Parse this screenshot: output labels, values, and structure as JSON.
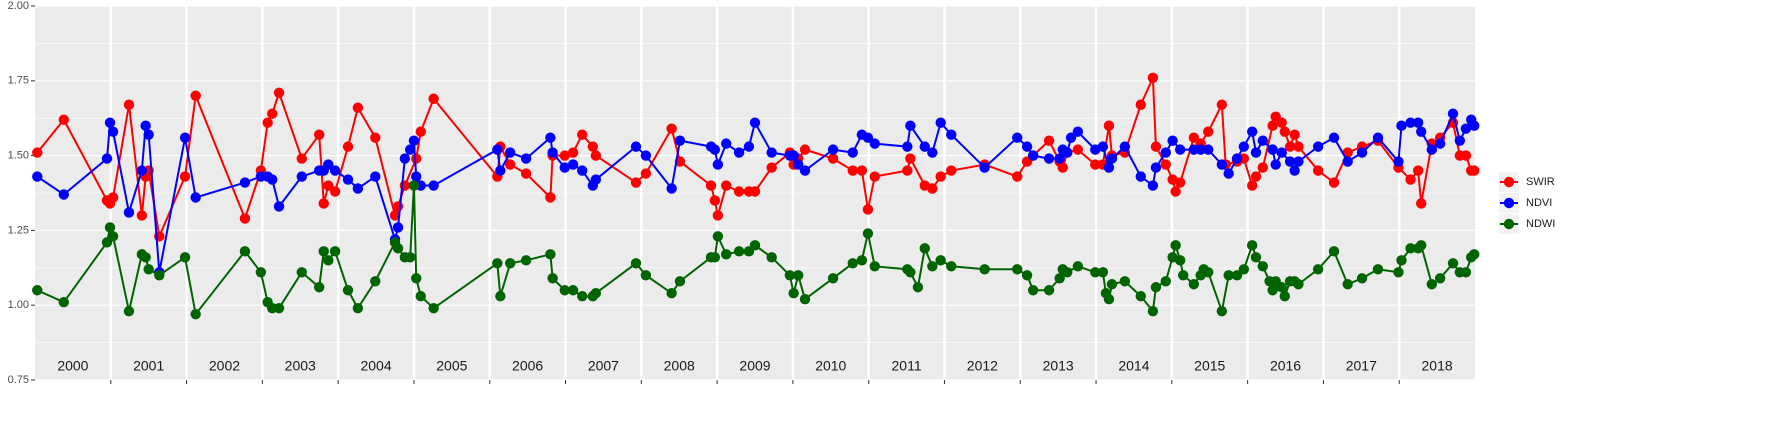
{
  "chart_data": {
    "type": "line",
    "xlim": [
      2000,
      2019
    ],
    "xticks": [
      2001,
      2002,
      2003,
      2004,
      2005,
      2006,
      2007,
      2008,
      2009,
      2010,
      2011,
      2012,
      2013,
      2014,
      2015,
      2016,
      2017,
      2018
    ],
    "year_labels": [
      "2000",
      "2001",
      "2002",
      "2003",
      "2004",
      "2005",
      "2006",
      "2007",
      "2008",
      "2009",
      "2010",
      "2011",
      "2012",
      "2013",
      "2014",
      "2015",
      "2016",
      "2017",
      "2018"
    ],
    "ylim": [
      0.75,
      2.0
    ],
    "yticks": [
      {
        "value": 0.75,
        "label": "0.75"
      },
      {
        "value": 1.0,
        "label": "1.00"
      },
      {
        "value": 1.25,
        "label": "1.25"
      },
      {
        "value": 1.5,
        "label": "1.50"
      },
      {
        "value": 1.75,
        "label": "1.75"
      },
      {
        "value": 2.0,
        "label": "2.00"
      }
    ],
    "grid": true,
    "legend": "right",
    "series": [
      {
        "name": "SWIR",
        "color": "#ff0000",
        "x": [
          2000.03,
          2000.38,
          2000.95,
          2000.99,
          2001.03,
          2001.24,
          2001.41,
          2001.46,
          2001.5,
          2001.64,
          2001.98,
          2002.12,
          2002.77,
          2002.98,
          2003.07,
          2003.13,
          2003.22,
          2003.52,
          2003.75,
          2003.81,
          2003.87,
          2003.96,
          2004.13,
          2004.26,
          2004.49,
          2004.75,
          2004.79,
          2004.88,
          2005.03,
          2005.09,
          2005.26,
          2006.1,
          2006.14,
          2006.27,
          2006.48,
          2006.8,
          2006.83,
          2006.99,
          2007.1,
          2007.22,
          2007.36,
          2007.4,
          2007.93,
          2008.06,
          2008.4,
          2008.51,
          2008.92,
          2008.97,
          2009.01,
          2009.12,
          2009.29,
          2009.42,
          2009.5,
          2009.72,
          2009.96,
          2010.01,
          2010.07,
          2010.16,
          2010.53,
          2010.79,
          2010.91,
          2010.99,
          2011.08,
          2011.51,
          2011.55,
          2011.74,
          2011.84,
          2011.95,
          2012.09,
          2012.53,
          2012.96,
          2013.09,
          2013.17,
          2013.38,
          2013.52,
          2013.56,
          2013.62,
          2013.76,
          2013.99,
          2014.09,
          2014.17,
          2014.21,
          2014.38,
          2014.59,
          2014.75,
          2014.79,
          2014.92,
          2015.01,
          2015.05,
          2015.11,
          2015.29,
          2015.38,
          2015.48,
          2015.66,
          2015.71,
          2015.86,
          2015.95,
          2016.06,
          2016.11,
          2016.2,
          2016.33,
          2016.37,
          2016.45,
          2016.49,
          2016.56,
          2016.62,
          2016.67,
          2016.93,
          2017.14,
          2017.32,
          2017.51,
          2017.72,
          2017.99,
          2018.15,
          2018.25,
          2018.29,
          2018.43,
          2018.54,
          2018.71,
          2018.8,
          2018.88,
          2018.95,
          2018.99
        ],
        "values": [
          1.51,
          1.62,
          1.35,
          1.34,
          1.36,
          1.67,
          1.3,
          1.43,
          1.45,
          1.23,
          1.43,
          1.7,
          1.29,
          1.45,
          1.61,
          1.64,
          1.71,
          1.49,
          1.57,
          1.34,
          1.4,
          1.38,
          1.53,
          1.66,
          1.56,
          1.3,
          1.33,
          1.4,
          1.49,
          1.58,
          1.69,
          1.43,
          1.53,
          1.47,
          1.44,
          1.36,
          1.5,
          1.5,
          1.51,
          1.57,
          1.53,
          1.5,
          1.41,
          1.44,
          1.59,
          1.48,
          1.4,
          1.35,
          1.3,
          1.4,
          1.38,
          1.38,
          1.38,
          1.46,
          1.51,
          1.47,
          1.49,
          1.52,
          1.49,
          1.45,
          1.45,
          1.32,
          1.43,
          1.45,
          1.49,
          1.4,
          1.39,
          1.43,
          1.45,
          1.47,
          1.43,
          1.48,
          1.5,
          1.55,
          1.48,
          1.46,
          1.51,
          1.52,
          1.47,
          1.47,
          1.6,
          1.5,
          1.51,
          1.67,
          1.76,
          1.53,
          1.47,
          1.42,
          1.38,
          1.41,
          1.56,
          1.54,
          1.58,
          1.67,
          1.47,
          1.48,
          1.49,
          1.4,
          1.43,
          1.46,
          1.6,
          1.63,
          1.61,
          1.58,
          1.53,
          1.57,
          1.53,
          1.45,
          1.41,
          1.51,
          1.53,
          1.55,
          1.46,
          1.42,
          1.45,
          1.34,
          1.54,
          1.56,
          1.61,
          1.5,
          1.5,
          1.45,
          1.45
        ]
      },
      {
        "name": "NDVI",
        "color": "#0000ff",
        "x": [
          2000.03,
          2000.38,
          2000.95,
          2000.99,
          2001.03,
          2001.24,
          2001.41,
          2001.46,
          2001.5,
          2001.64,
          2001.98,
          2002.12,
          2002.77,
          2002.98,
          2003.07,
          2003.13,
          2003.22,
          2003.52,
          2003.75,
          2003.81,
          2003.87,
          2003.96,
          2004.13,
          2004.26,
          2004.49,
          2004.75,
          2004.79,
          2004.88,
          2004.95,
          2005.0,
          2005.03,
          2005.09,
          2005.26,
          2006.1,
          2006.14,
          2006.27,
          2006.48,
          2006.8,
          2006.83,
          2006.99,
          2007.1,
          2007.22,
          2007.36,
          2007.4,
          2007.93,
          2008.06,
          2008.4,
          2008.51,
          2008.92,
          2008.97,
          2009.01,
          2009.12,
          2009.29,
          2009.42,
          2009.5,
          2009.72,
          2009.96,
          2010.01,
          2010.07,
          2010.16,
          2010.53,
          2010.79,
          2010.91,
          2010.99,
          2011.08,
          2011.51,
          2011.55,
          2011.74,
          2011.84,
          2011.95,
          2012.09,
          2012.53,
          2012.96,
          2013.09,
          2013.17,
          2013.38,
          2013.52,
          2013.56,
          2013.62,
          2013.67,
          2013.76,
          2013.99,
          2014.09,
          2014.17,
          2014.21,
          2014.38,
          2014.59,
          2014.75,
          2014.79,
          2014.92,
          2015.01,
          2015.11,
          2015.29,
          2015.38,
          2015.48,
          2015.66,
          2015.75,
          2015.86,
          2015.95,
          2016.06,
          2016.11,
          2016.2,
          2016.33,
          2016.37,
          2016.45,
          2016.56,
          2016.62,
          2016.67,
          2016.93,
          2017.14,
          2017.32,
          2017.51,
          2017.72,
          2017.99,
          2018.03,
          2018.15,
          2018.25,
          2018.29,
          2018.43,
          2018.54,
          2018.71,
          2018.8,
          2018.88,
          2018.95,
          2018.99
        ],
        "values": [
          1.43,
          1.37,
          1.49,
          1.61,
          1.58,
          1.31,
          1.45,
          1.6,
          1.57,
          1.11,
          1.56,
          1.36,
          1.41,
          1.43,
          1.43,
          1.42,
          1.33,
          1.43,
          1.45,
          1.45,
          1.47,
          1.45,
          1.42,
          1.39,
          1.43,
          1.22,
          1.26,
          1.49,
          1.52,
          1.55,
          1.43,
          1.4,
          1.4,
          1.52,
          1.45,
          1.51,
          1.49,
          1.56,
          1.51,
          1.46,
          1.47,
          1.45,
          1.4,
          1.42,
          1.53,
          1.5,
          1.39,
          1.55,
          1.53,
          1.52,
          1.47,
          1.54,
          1.51,
          1.53,
          1.61,
          1.51,
          1.5,
          1.5,
          1.47,
          1.45,
          1.52,
          1.51,
          1.57,
          1.56,
          1.54,
          1.53,
          1.6,
          1.53,
          1.51,
          1.61,
          1.57,
          1.46,
          1.56,
          1.53,
          1.5,
          1.49,
          1.49,
          1.52,
          1.51,
          1.56,
          1.58,
          1.52,
          1.53,
          1.46,
          1.49,
          1.53,
          1.43,
          1.4,
          1.46,
          1.51,
          1.55,
          1.52,
          1.52,
          1.52,
          1.52,
          1.47,
          1.44,
          1.49,
          1.53,
          1.58,
          1.51,
          1.55,
          1.52,
          1.47,
          1.51,
          1.48,
          1.45,
          1.48,
          1.53,
          1.56,
          1.48,
          1.51,
          1.56,
          1.48,
          1.6,
          1.61,
          1.61,
          1.58,
          1.52,
          1.54,
          1.64,
          1.55,
          1.59,
          1.62,
          1.6
        ]
      },
      {
        "name": "NDWI",
        "color": "#006400",
        "x": [
          2000.03,
          2000.38,
          2000.95,
          2000.99,
          2001.03,
          2001.24,
          2001.41,
          2001.46,
          2001.5,
          2001.64,
          2001.98,
          2002.12,
          2002.77,
          2002.98,
          2003.07,
          2003.13,
          2003.22,
          2003.52,
          2003.75,
          2003.81,
          2003.87,
          2003.96,
          2004.13,
          2004.26,
          2004.49,
          2004.75,
          2004.79,
          2004.88,
          2004.95,
          2005.0,
          2005.03,
          2005.09,
          2005.26,
          2006.1,
          2006.14,
          2006.27,
          2006.48,
          2006.8,
          2006.83,
          2006.99,
          2007.1,
          2007.22,
          2007.36,
          2007.4,
          2007.93,
          2008.06,
          2008.4,
          2008.51,
          2008.92,
          2008.97,
          2009.01,
          2009.12,
          2009.29,
          2009.42,
          2009.5,
          2009.72,
          2009.96,
          2010.01,
          2010.07,
          2010.16,
          2010.53,
          2010.79,
          2010.91,
          2010.99,
          2011.08,
          2011.51,
          2011.55,
          2011.65,
          2011.74,
          2011.84,
          2011.95,
          2012.09,
          2012.53,
          2012.96,
          2013.09,
          2013.17,
          2013.38,
          2013.52,
          2013.56,
          2013.62,
          2013.76,
          2013.99,
          2014.09,
          2014.13,
          2014.17,
          2014.21,
          2014.38,
          2014.59,
          2014.75,
          2014.79,
          2014.92,
          2015.01,
          2015.05,
          2015.11,
          2015.15,
          2015.29,
          2015.38,
          2015.42,
          2015.48,
          2015.66,
          2015.75,
          2015.86,
          2015.95,
          2016.06,
          2016.11,
          2016.2,
          2016.29,
          2016.33,
          2016.37,
          2016.45,
          2016.49,
          2016.56,
          2016.62,
          2016.67,
          2016.93,
          2017.14,
          2017.32,
          2017.51,
          2017.72,
          2017.99,
          2018.03,
          2018.15,
          2018.25,
          2018.29,
          2018.43,
          2018.54,
          2018.71,
          2018.8,
          2018.88,
          2018.95,
          2018.99
        ],
        "values": [
          1.05,
          1.01,
          1.21,
          1.26,
          1.23,
          0.98,
          1.17,
          1.16,
          1.12,
          1.1,
          1.16,
          0.97,
          1.18,
          1.11,
          1.01,
          0.99,
          0.99,
          1.11,
          1.06,
          1.18,
          1.15,
          1.18,
          1.05,
          0.99,
          1.08,
          1.21,
          1.19,
          1.16,
          1.16,
          1.4,
          1.09,
          1.03,
          0.99,
          1.14,
          1.03,
          1.14,
          1.15,
          1.17,
          1.09,
          1.05,
          1.05,
          1.03,
          1.03,
          1.04,
          1.14,
          1.1,
          1.04,
          1.08,
          1.16,
          1.16,
          1.23,
          1.17,
          1.18,
          1.18,
          1.2,
          1.16,
          1.1,
          1.04,
          1.1,
          1.02,
          1.09,
          1.14,
          1.15,
          1.24,
          1.13,
          1.12,
          1.11,
          1.06,
          1.19,
          1.13,
          1.15,
          1.13,
          1.12,
          1.12,
          1.1,
          1.05,
          1.05,
          1.09,
          1.12,
          1.11,
          1.13,
          1.11,
          1.11,
          1.04,
          1.02,
          1.07,
          1.08,
          1.03,
          0.98,
          1.06,
          1.08,
          1.16,
          1.2,
          1.15,
          1.1,
          1.07,
          1.1,
          1.12,
          1.11,
          0.98,
          1.1,
          1.1,
          1.12,
          1.2,
          1.16,
          1.13,
          1.08,
          1.05,
          1.08,
          1.06,
          1.03,
          1.08,
          1.08,
          1.07,
          1.12,
          1.18,
          1.07,
          1.09,
          1.12,
          1.11,
          1.15,
          1.19,
          1.19,
          1.2,
          1.07,
          1.09,
          1.14,
          1.11,
          1.11,
          1.16,
          1.17
        ]
      }
    ]
  }
}
